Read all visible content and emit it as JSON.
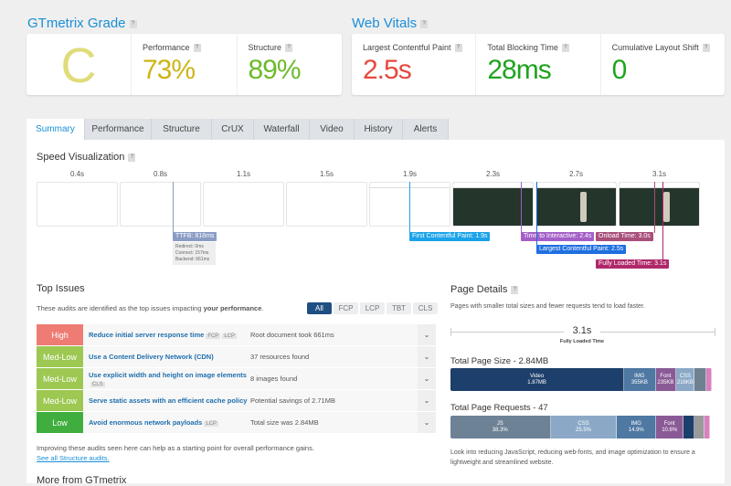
{
  "grade": {
    "title": "GTmetrix Grade",
    "letter": "C",
    "performance_label": "Performance",
    "performance": "73%",
    "structure_label": "Structure",
    "structure": "89%"
  },
  "vitals": {
    "title": "Web Vitals",
    "lcp_label": "Largest Contentful Paint",
    "lcp": "2.5s",
    "tbt_label": "Total Blocking Time",
    "tbt": "28ms",
    "cls_label": "Cumulative Layout Shift",
    "cls": "0"
  },
  "tabs": [
    "Summary",
    "Performance",
    "Structure",
    "CrUX",
    "Waterfall",
    "Video",
    "History",
    "Alerts"
  ],
  "speed": {
    "title": "Speed Visualization",
    "times": [
      "0.4s",
      "0.8s",
      "1.1s",
      "1.5s",
      "1.9s",
      "2.3s",
      "2.7s",
      "3.1s"
    ],
    "markers": {
      "ttfb": "TTFB: 818ms",
      "ttfb_details": [
        "Redirect: 0ms",
        "Connect: 157ms",
        "Backend: 661ms"
      ],
      "fcp": "First Contentful Paint: 1.9s",
      "tti": "Time to Interactive: 2.4s",
      "lcp": "Largest Contentful Paint: 2.5s",
      "onload": "Onload Time: 3.0s",
      "fully": "Fully Loaded Time: 3.1s"
    },
    "colors": {
      "ttfb": "#8a9cc4",
      "fcp": "#1aa3e8",
      "tti": "#a35fc7",
      "lcp": "#1f6fe0",
      "onload": "#a8507a",
      "fully": "#b0286a"
    }
  },
  "issues": {
    "title": "Top Issues",
    "desc_prefix": "These audits are identified as the top issues impacting ",
    "desc_bold": "your performance",
    "desc_suffix": ".",
    "filters": [
      "All",
      "FCP",
      "LCP",
      "TBT",
      "CLS"
    ],
    "rows": [
      {
        "severity": "High",
        "color": "#ee7b74",
        "title": "Reduce initial server response time",
        "tags": [
          "FCP",
          "LCP"
        ],
        "detail": "Root document took 661ms"
      },
      {
        "severity": "Med-Low",
        "color": "#9dc852",
        "title": "Use a Content Delivery Network (CDN)",
        "tags": [],
        "detail": "37 resources found"
      },
      {
        "severity": "Med-Low",
        "color": "#9dc852",
        "title": "Use explicit width and height on image elements",
        "tags": [
          "CLS"
        ],
        "detail": "8 images found"
      },
      {
        "severity": "Med-Low",
        "color": "#9dc852",
        "title": "Serve static assets with an efficient cache policy",
        "tags": [],
        "detail": "Potential savings of 2.71MB"
      },
      {
        "severity": "Low",
        "color": "#3fae3f",
        "title": "Avoid enormous network payloads",
        "tags": [
          "LCP"
        ],
        "detail": "Total size was 2.84MB"
      }
    ],
    "footer": "Improving these audits seen here can help as a starting point for overall performance gains.",
    "link": "See all Structure audits.",
    "more": "More from GTmetrix"
  },
  "details": {
    "title": "Page Details",
    "desc": "Pages with smaller total sizes and fewer requests tend to load faster.",
    "fully_loaded": "3.1s",
    "fully_loaded_label": "Fully Loaded Time",
    "size_title": "Total Page Size - 2.84MB",
    "size_segments": [
      {
        "label": "Video",
        "value": "1.87MB",
        "pct": 66.5,
        "color": "#1d3f6b"
      },
      {
        "label": "IMG",
        "value": "355KB",
        "pct": 12,
        "color": "#4f78a3"
      },
      {
        "label": "Font",
        "value": "235KB",
        "pct": 8,
        "color": "#8a5a96"
      },
      {
        "label": "CSS",
        "value": "216KB",
        "pct": 7,
        "color": "#8ba9c7"
      },
      {
        "label": "",
        "value": "",
        "pct": 4.5,
        "color": "#6f8090"
      },
      {
        "label": "",
        "value": "",
        "pct": 2,
        "color": "#d880c0"
      }
    ],
    "req_title": "Total Page Requests - 47",
    "req_segments": [
      {
        "label": "JS",
        "value": "38.3%",
        "pct": 38.3,
        "color": "#6e8296"
      },
      {
        "label": "CSS",
        "value": "25.5%",
        "pct": 25.5,
        "color": "#8ba9c7"
      },
      {
        "label": "IMG",
        "value": "14.9%",
        "pct": 14.9,
        "color": "#4f78a3"
      },
      {
        "label": "Font",
        "value": "10.6%",
        "pct": 10.6,
        "color": "#8a5a96"
      },
      {
        "label": "",
        "value": "",
        "pct": 4,
        "color": "#1d3f6b"
      },
      {
        "label": "",
        "value": "",
        "pct": 4,
        "color": "#9a9a9a"
      },
      {
        "label": "",
        "value": "",
        "pct": 2.1,
        "color": "#d880c0"
      }
    ],
    "note": "Look into reducing JavaScript, reducing web-fonts, and image optimization to ensure a lightweight and streamlined website."
  }
}
